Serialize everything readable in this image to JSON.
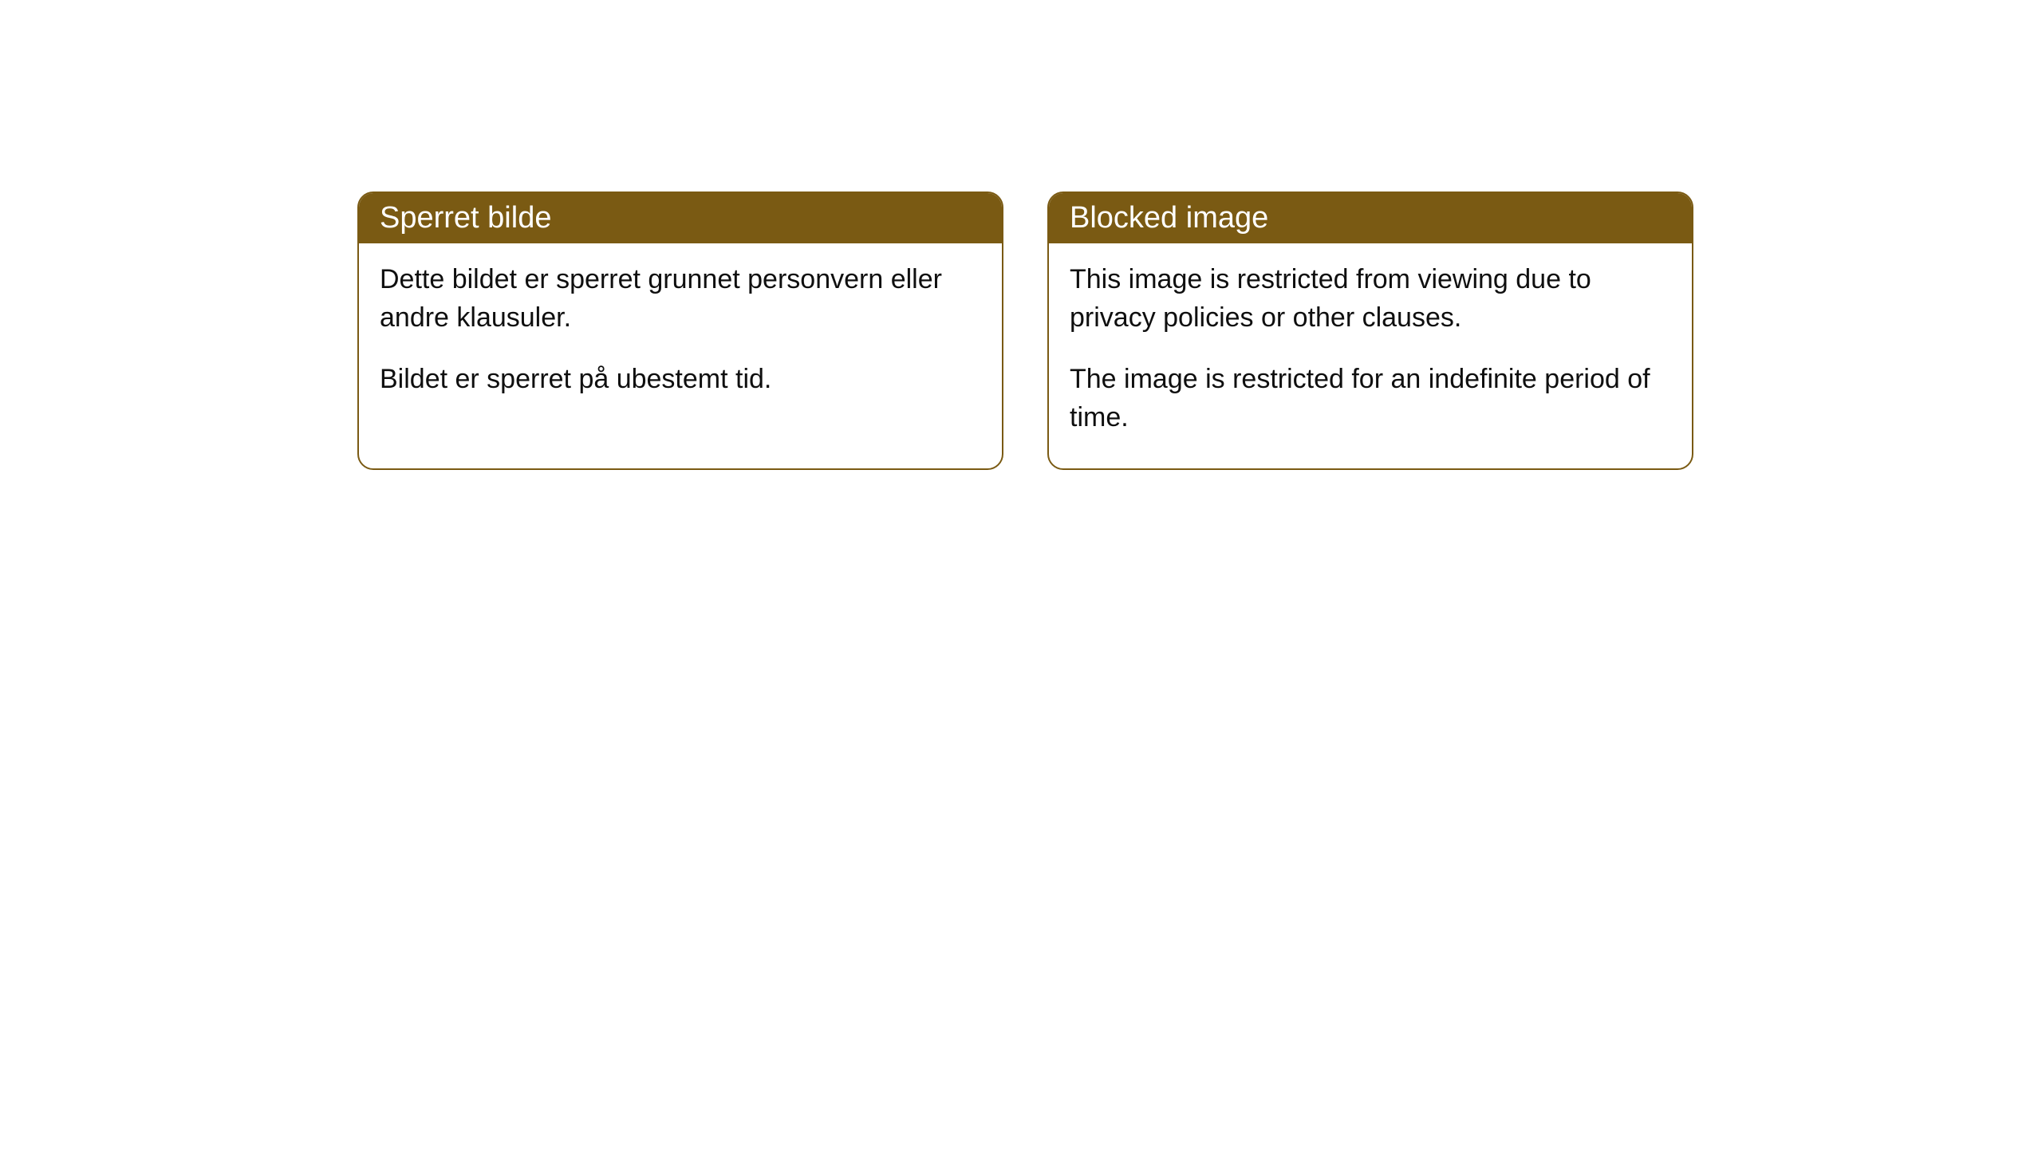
{
  "cards": [
    {
      "title": "Sperret bilde",
      "para1": "Dette bildet er sperret grunnet personvern eller andre klausuler.",
      "para2": "Bildet er sperret på ubestemt tid."
    },
    {
      "title": "Blocked image",
      "para1": "This image is restricted from viewing due to privacy policies or other clauses.",
      "para2": "The image is restricted for an indefinite period of time."
    }
  ],
  "style": {
    "header_bg": "#7a5a13",
    "header_fg": "#ffffff",
    "border_color": "#7a5a13",
    "body_fg": "#0f0f0f",
    "page_bg": "#ffffff",
    "border_radius": 20,
    "title_fontsize": 38,
    "body_fontsize": 34
  }
}
